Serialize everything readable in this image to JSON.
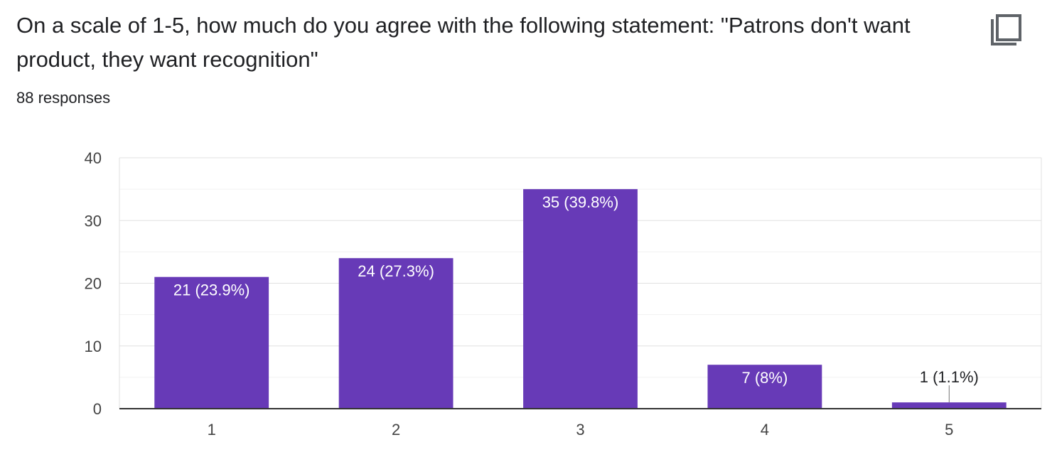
{
  "question": {
    "title": "On a scale of 1-5, how much do you agree with the following statement: \"Patrons don't want product, they want recognition\"",
    "responses": "88 responses",
    "copy_icon": "copy-icon"
  },
  "chart_data": {
    "type": "bar",
    "categories": [
      "1",
      "2",
      "3",
      "4",
      "5"
    ],
    "values": [
      21,
      24,
      35,
      7,
      1
    ],
    "labels": [
      "21 (23.9%)",
      "24 (27.3%)",
      "35 (39.8%)",
      "7 (8%)",
      "1 (1.1%)"
    ],
    "yticks": [
      0,
      10,
      20,
      30,
      40
    ],
    "ylim": [
      0,
      40
    ],
    "grid": true,
    "bar_color": "#673ab7",
    "title": "",
    "xlabel": "",
    "ylabel": ""
  }
}
